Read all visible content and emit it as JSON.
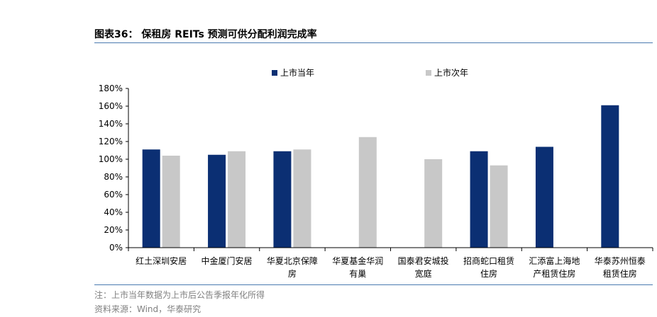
{
  "header": {
    "title": "图表36： 保租房 REITs 预测可供分配利润完成率"
  },
  "footer": {
    "note": "注：上市当年数据为上市后公告季报年化所得",
    "source": "资料来源：Wind，华泰研究"
  },
  "colors": {
    "series_1": "#0b2f73",
    "series_2": "#c8c8c8",
    "axis": "#000000",
    "rule": "#4a7ab0"
  },
  "chart_data": {
    "type": "bar",
    "title": "",
    "xlabel": "",
    "ylabel": "",
    "ylim": [
      0,
      180
    ],
    "yticks": [
      0,
      20,
      40,
      60,
      80,
      100,
      120,
      140,
      160,
      180
    ],
    "ytick_labels": [
      "0%",
      "20%",
      "40%",
      "60%",
      "80%",
      "100%",
      "120%",
      "140%",
      "160%",
      "180%"
    ],
    "grid": false,
    "legend_position": "top",
    "categories": [
      [
        "红土深圳安居"
      ],
      [
        "中金厦门安居"
      ],
      [
        "华夏北京保障",
        "房"
      ],
      [
        "华夏基金华润",
        "有巢"
      ],
      [
        "国泰君安城投",
        "宽庭"
      ],
      [
        "招商蛇口租赁",
        "住房"
      ],
      [
        "汇添富上海地",
        "产租赁住房"
      ],
      [
        "华泰苏州恒泰",
        "租赁住房"
      ]
    ],
    "series": [
      {
        "name": "上市当年",
        "values": [
          111,
          105,
          109,
          null,
          null,
          109,
          114,
          161
        ]
      },
      {
        "name": "上市次年",
        "values": [
          104,
          109,
          111,
          125,
          100,
          93,
          null,
          null
        ]
      }
    ]
  }
}
